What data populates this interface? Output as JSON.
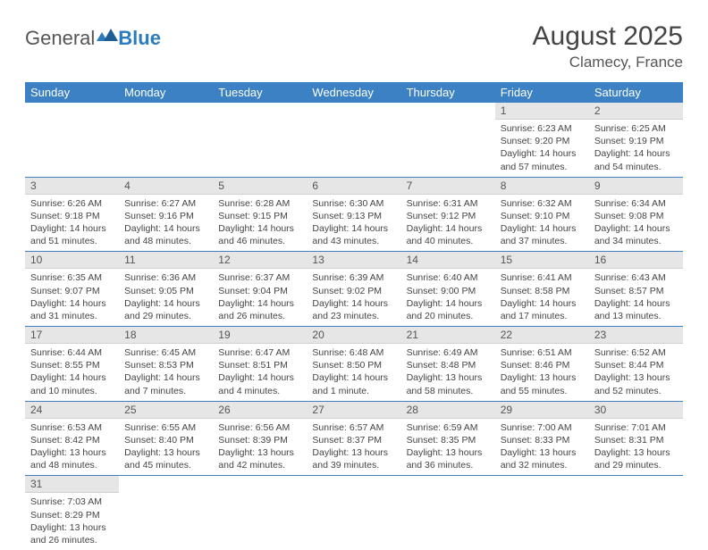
{
  "logo": {
    "general": "General",
    "blue": "Blue"
  },
  "title": "August 2025",
  "location": "Clamecy, France",
  "colors": {
    "header_bg": "#3b81c3",
    "header_text": "#ffffff",
    "daynum_bg": "#e6e6e6",
    "cell_border": "#3b81c3",
    "logo_blue": "#2b7bbf",
    "text": "#444444"
  },
  "weekdays": [
    "Sunday",
    "Monday",
    "Tuesday",
    "Wednesday",
    "Thursday",
    "Friday",
    "Saturday"
  ],
  "weeks": [
    [
      null,
      null,
      null,
      null,
      null,
      {
        "n": "1",
        "sr": "Sunrise: 6:23 AM",
        "ss": "Sunset: 9:20 PM",
        "d1": "Daylight: 14 hours",
        "d2": "and 57 minutes."
      },
      {
        "n": "2",
        "sr": "Sunrise: 6:25 AM",
        "ss": "Sunset: 9:19 PM",
        "d1": "Daylight: 14 hours",
        "d2": "and 54 minutes."
      }
    ],
    [
      {
        "n": "3",
        "sr": "Sunrise: 6:26 AM",
        "ss": "Sunset: 9:18 PM",
        "d1": "Daylight: 14 hours",
        "d2": "and 51 minutes."
      },
      {
        "n": "4",
        "sr": "Sunrise: 6:27 AM",
        "ss": "Sunset: 9:16 PM",
        "d1": "Daylight: 14 hours",
        "d2": "and 48 minutes."
      },
      {
        "n": "5",
        "sr": "Sunrise: 6:28 AM",
        "ss": "Sunset: 9:15 PM",
        "d1": "Daylight: 14 hours",
        "d2": "and 46 minutes."
      },
      {
        "n": "6",
        "sr": "Sunrise: 6:30 AM",
        "ss": "Sunset: 9:13 PM",
        "d1": "Daylight: 14 hours",
        "d2": "and 43 minutes."
      },
      {
        "n": "7",
        "sr": "Sunrise: 6:31 AM",
        "ss": "Sunset: 9:12 PM",
        "d1": "Daylight: 14 hours",
        "d2": "and 40 minutes."
      },
      {
        "n": "8",
        "sr": "Sunrise: 6:32 AM",
        "ss": "Sunset: 9:10 PM",
        "d1": "Daylight: 14 hours",
        "d2": "and 37 minutes."
      },
      {
        "n": "9",
        "sr": "Sunrise: 6:34 AM",
        "ss": "Sunset: 9:08 PM",
        "d1": "Daylight: 14 hours",
        "d2": "and 34 minutes."
      }
    ],
    [
      {
        "n": "10",
        "sr": "Sunrise: 6:35 AM",
        "ss": "Sunset: 9:07 PM",
        "d1": "Daylight: 14 hours",
        "d2": "and 31 minutes."
      },
      {
        "n": "11",
        "sr": "Sunrise: 6:36 AM",
        "ss": "Sunset: 9:05 PM",
        "d1": "Daylight: 14 hours",
        "d2": "and 29 minutes."
      },
      {
        "n": "12",
        "sr": "Sunrise: 6:37 AM",
        "ss": "Sunset: 9:04 PM",
        "d1": "Daylight: 14 hours",
        "d2": "and 26 minutes."
      },
      {
        "n": "13",
        "sr": "Sunrise: 6:39 AM",
        "ss": "Sunset: 9:02 PM",
        "d1": "Daylight: 14 hours",
        "d2": "and 23 minutes."
      },
      {
        "n": "14",
        "sr": "Sunrise: 6:40 AM",
        "ss": "Sunset: 9:00 PM",
        "d1": "Daylight: 14 hours",
        "d2": "and 20 minutes."
      },
      {
        "n": "15",
        "sr": "Sunrise: 6:41 AM",
        "ss": "Sunset: 8:58 PM",
        "d1": "Daylight: 14 hours",
        "d2": "and 17 minutes."
      },
      {
        "n": "16",
        "sr": "Sunrise: 6:43 AM",
        "ss": "Sunset: 8:57 PM",
        "d1": "Daylight: 14 hours",
        "d2": "and 13 minutes."
      }
    ],
    [
      {
        "n": "17",
        "sr": "Sunrise: 6:44 AM",
        "ss": "Sunset: 8:55 PM",
        "d1": "Daylight: 14 hours",
        "d2": "and 10 minutes."
      },
      {
        "n": "18",
        "sr": "Sunrise: 6:45 AM",
        "ss": "Sunset: 8:53 PM",
        "d1": "Daylight: 14 hours",
        "d2": "and 7 minutes."
      },
      {
        "n": "19",
        "sr": "Sunrise: 6:47 AM",
        "ss": "Sunset: 8:51 PM",
        "d1": "Daylight: 14 hours",
        "d2": "and 4 minutes."
      },
      {
        "n": "20",
        "sr": "Sunrise: 6:48 AM",
        "ss": "Sunset: 8:50 PM",
        "d1": "Daylight: 14 hours",
        "d2": "and 1 minute."
      },
      {
        "n": "21",
        "sr": "Sunrise: 6:49 AM",
        "ss": "Sunset: 8:48 PM",
        "d1": "Daylight: 13 hours",
        "d2": "and 58 minutes."
      },
      {
        "n": "22",
        "sr": "Sunrise: 6:51 AM",
        "ss": "Sunset: 8:46 PM",
        "d1": "Daylight: 13 hours",
        "d2": "and 55 minutes."
      },
      {
        "n": "23",
        "sr": "Sunrise: 6:52 AM",
        "ss": "Sunset: 8:44 PM",
        "d1": "Daylight: 13 hours",
        "d2": "and 52 minutes."
      }
    ],
    [
      {
        "n": "24",
        "sr": "Sunrise: 6:53 AM",
        "ss": "Sunset: 8:42 PM",
        "d1": "Daylight: 13 hours",
        "d2": "and 48 minutes."
      },
      {
        "n": "25",
        "sr": "Sunrise: 6:55 AM",
        "ss": "Sunset: 8:40 PM",
        "d1": "Daylight: 13 hours",
        "d2": "and 45 minutes."
      },
      {
        "n": "26",
        "sr": "Sunrise: 6:56 AM",
        "ss": "Sunset: 8:39 PM",
        "d1": "Daylight: 13 hours",
        "d2": "and 42 minutes."
      },
      {
        "n": "27",
        "sr": "Sunrise: 6:57 AM",
        "ss": "Sunset: 8:37 PM",
        "d1": "Daylight: 13 hours",
        "d2": "and 39 minutes."
      },
      {
        "n": "28",
        "sr": "Sunrise: 6:59 AM",
        "ss": "Sunset: 8:35 PM",
        "d1": "Daylight: 13 hours",
        "d2": "and 36 minutes."
      },
      {
        "n": "29",
        "sr": "Sunrise: 7:00 AM",
        "ss": "Sunset: 8:33 PM",
        "d1": "Daylight: 13 hours",
        "d2": "and 32 minutes."
      },
      {
        "n": "30",
        "sr": "Sunrise: 7:01 AM",
        "ss": "Sunset: 8:31 PM",
        "d1": "Daylight: 13 hours",
        "d2": "and 29 minutes."
      }
    ],
    [
      {
        "n": "31",
        "sr": "Sunrise: 7:03 AM",
        "ss": "Sunset: 8:29 PM",
        "d1": "Daylight: 13 hours",
        "d2": "and 26 minutes."
      },
      null,
      null,
      null,
      null,
      null,
      null
    ]
  ]
}
